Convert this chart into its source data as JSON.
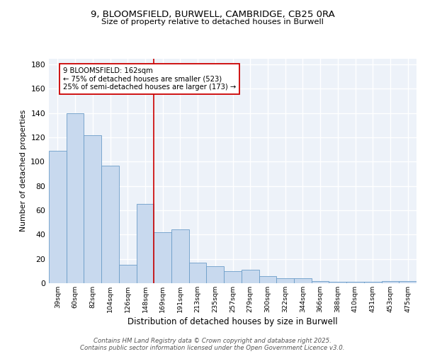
{
  "title_line1": "9, BLOOMSFIELD, BURWELL, CAMBRIDGE, CB25 0RA",
  "title_line2": "Size of property relative to detached houses in Burwell",
  "xlabel": "Distribution of detached houses by size in Burwell",
  "ylabel": "Number of detached properties",
  "categories": [
    "39sqm",
    "60sqm",
    "82sqm",
    "104sqm",
    "126sqm",
    "148sqm",
    "169sqm",
    "191sqm",
    "213sqm",
    "235sqm",
    "257sqm",
    "279sqm",
    "300sqm",
    "322sqm",
    "344sqm",
    "366sqm",
    "388sqm",
    "410sqm",
    "431sqm",
    "453sqm",
    "475sqm"
  ],
  "values": [
    109,
    140,
    122,
    97,
    15,
    65,
    42,
    44,
    17,
    14,
    10,
    11,
    6,
    4,
    4,
    2,
    1,
    1,
    1,
    2,
    2
  ],
  "bar_color": "#c8d9ee",
  "bar_edgecolor": "#6b9dc8",
  "bar_width": 1.0,
  "vline_x": 5.5,
  "vline_color": "#cc0000",
  "annotation_text": "9 BLOOMSFIELD: 162sqm\n← 75% of detached houses are smaller (523)\n25% of semi-detached houses are larger (173) →",
  "ylim": [
    0,
    185
  ],
  "yticks": [
    0,
    20,
    40,
    60,
    80,
    100,
    120,
    140,
    160,
    180
  ],
  "footer_text": "Contains HM Land Registry data © Crown copyright and database right 2025.\nContains public sector information licensed under the Open Government Licence v3.0.",
  "background_color": "#edf2f9",
  "grid_color": "#ffffff"
}
